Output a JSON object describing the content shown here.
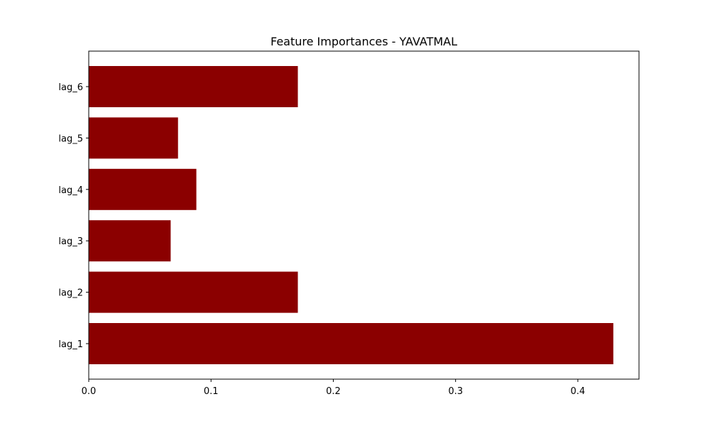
{
  "chart_data": {
    "type": "bar",
    "orientation": "horizontal",
    "title": "Feature Importances - YAVATMAL",
    "xlabel": "",
    "ylabel": "",
    "categories": [
      "lag_1",
      "lag_2",
      "lag_3",
      "lag_4",
      "lag_5",
      "lag_6"
    ],
    "values": [
      0.429,
      0.171,
      0.067,
      0.088,
      0.073,
      0.171
    ],
    "xlim": [
      0,
      0.45
    ],
    "x_ticks": [
      0.0,
      0.1,
      0.2,
      0.3,
      0.4
    ],
    "x_tick_labels": [
      "0.0",
      "0.1",
      "0.2",
      "0.3",
      "0.4"
    ],
    "bar_color": "#8b0000",
    "grid": false,
    "legend": "none"
  }
}
